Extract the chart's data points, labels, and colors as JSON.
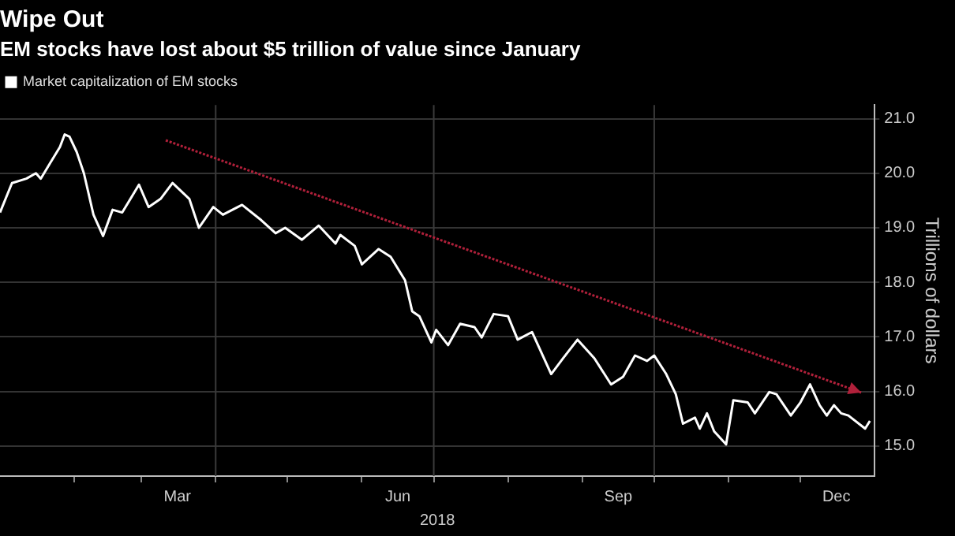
{
  "chart_data": {
    "type": "line",
    "title": "Wipe Out",
    "subtitle": "EM stocks have lost about $5 trillion of value since January",
    "ylabel": "Trillions of dollars",
    "xlabel": "2018",
    "series": [
      {
        "name": "Market capitalization of EM stocks",
        "color": "#ffffff",
        "x": [
          "2018-01-01",
          "2018-01-06",
          "2018-01-12",
          "2018-01-16",
          "2018-01-18",
          "2018-01-22",
          "2018-01-26",
          "2018-01-28",
          "2018-01-30",
          "2018-02-02",
          "2018-02-05",
          "2018-02-09",
          "2018-02-13",
          "2018-02-17",
          "2018-02-21",
          "2018-02-28",
          "2018-03-04",
          "2018-03-09",
          "2018-03-14",
          "2018-03-21",
          "2018-03-25",
          "2018-03-31",
          "2018-04-04",
          "2018-04-12",
          "2018-04-20",
          "2018-04-26",
          "2018-04-30",
          "2018-05-07",
          "2018-05-14",
          "2018-05-21",
          "2018-05-23",
          "2018-05-29",
          "2018-06-01",
          "2018-06-08",
          "2018-06-13",
          "2018-06-19",
          "2018-06-22",
          "2018-06-25",
          "2018-06-30",
          "2018-07-02",
          "2018-07-07",
          "2018-07-12",
          "2018-07-18",
          "2018-07-21",
          "2018-07-26",
          "2018-08-01",
          "2018-08-05",
          "2018-08-11",
          "2018-08-19",
          "2018-08-24",
          "2018-08-30",
          "2018-09-06",
          "2018-09-13",
          "2018-09-18",
          "2018-09-23",
          "2018-09-28",
          "2018-10-01",
          "2018-10-06",
          "2018-10-10",
          "2018-10-13",
          "2018-10-18",
          "2018-10-20",
          "2018-10-23",
          "2018-10-26",
          "2018-10-31",
          "2018-11-03",
          "2018-11-09",
          "2018-11-12",
          "2018-11-18",
          "2018-11-21",
          "2018-11-27",
          "2018-12-01",
          "2018-12-05",
          "2018-12-09",
          "2018-12-12",
          "2018-12-15",
          "2018-12-18",
          "2018-12-21",
          "2018-12-28",
          "2018-12-30"
        ],
        "values": [
          19.28,
          19.82,
          19.9,
          20.0,
          19.9,
          20.19,
          20.48,
          20.71,
          20.67,
          20.39,
          20.0,
          19.24,
          18.85,
          19.33,
          19.28,
          19.79,
          19.38,
          19.53,
          19.82,
          19.53,
          19.0,
          19.38,
          19.24,
          19.42,
          19.14,
          18.9,
          19.0,
          18.78,
          19.04,
          18.71,
          18.87,
          18.67,
          18.33,
          18.61,
          18.47,
          18.04,
          17.47,
          17.38,
          16.9,
          17.13,
          16.85,
          17.24,
          17.18,
          16.99,
          17.42,
          17.38,
          16.95,
          17.09,
          16.32,
          16.61,
          16.95,
          16.61,
          16.13,
          16.27,
          16.66,
          16.56,
          16.66,
          16.32,
          15.95,
          15.41,
          15.52,
          15.32,
          15.6,
          15.27,
          15.03,
          15.84,
          15.8,
          15.6,
          15.99,
          15.95,
          15.56,
          15.8,
          16.13,
          15.75,
          15.56,
          15.75,
          15.6,
          15.56,
          15.32,
          15.46
        ]
      }
    ],
    "xlim": [
      "2018-01-01",
      "2019-01-01"
    ],
    "xticks": [
      {
        "value": "2018-02-01",
        "label": null
      },
      {
        "value": "2018-03-01",
        "label": null
      },
      {
        "value": "2018-03-16",
        "label": "Mar"
      },
      {
        "value": "2018-04-01",
        "label": null
      },
      {
        "value": "2018-05-01",
        "label": null
      },
      {
        "value": "2018-06-01",
        "label": null
      },
      {
        "value": "2018-06-16",
        "label": "Jun"
      },
      {
        "value": "2018-07-01",
        "label": null
      },
      {
        "value": "2018-08-01",
        "label": null
      },
      {
        "value": "2018-09-01",
        "label": null
      },
      {
        "value": "2018-09-16",
        "label": "Sep"
      },
      {
        "value": "2018-10-01",
        "label": null
      },
      {
        "value": "2018-11-01",
        "label": null
      },
      {
        "value": "2018-12-01",
        "label": null
      },
      {
        "value": "2018-12-16",
        "label": "Dec"
      }
    ],
    "ylim": [
      14.45,
      21.25
    ],
    "yticks": [
      {
        "value": 15,
        "label": "15.0"
      },
      {
        "value": 16,
        "label": "16.0"
      },
      {
        "value": 17,
        "label": "17.0"
      },
      {
        "value": 18,
        "label": "18.0"
      },
      {
        "value": 19,
        "label": "19.0"
      },
      {
        "value": 20,
        "label": "20.0"
      },
      {
        "value": 21,
        "label": "21.0"
      }
    ],
    "ref_lines": [
      {
        "axis": "x",
        "value": "2018-04-01",
        "color": "#3a3a3a"
      },
      {
        "axis": "x",
        "value": "2018-07-01",
        "color": "#3a3a3a"
      },
      {
        "axis": "x",
        "value": "2018-10-01",
        "color": "#3a3a3a"
      }
    ],
    "grid": "y",
    "legend": "top left",
    "marker": "none",
    "line_style": "solid"
  }
}
